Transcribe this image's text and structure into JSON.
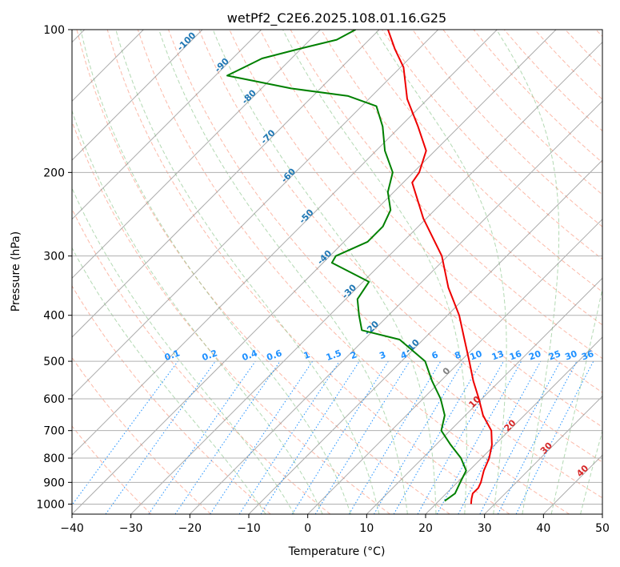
{
  "chart_data": {
    "type": "line",
    "title": "wetPf2_C2E6.2025.108.01.16.G25",
    "xlabel": "Temperature (°C)",
    "ylabel": "Pressure (hPa)",
    "xlim": [
      -40,
      50
    ],
    "ylim": [
      1050,
      100
    ],
    "y_scale": "log",
    "skew": true,
    "grid": true,
    "x_ticks": [
      "−40",
      "−30",
      "−20",
      "−10",
      "0",
      "10",
      "20",
      "30",
      "40",
      "50"
    ],
    "y_ticks": [
      "100",
      "200",
      "300",
      "400",
      "500",
      "600",
      "700",
      "800",
      "900",
      "1000"
    ],
    "series": [
      {
        "color": "#ee0000",
        "points": [
          {
            "p": 1000,
            "t": 26.0
          },
          {
            "p": 975,
            "t": 25.2
          },
          {
            "p": 950,
            "t": 24.5
          },
          {
            "p": 925,
            "t": 24.5
          },
          {
            "p": 900,
            "t": 24.0
          },
          {
            "p": 850,
            "t": 22.5
          },
          {
            "p": 800,
            "t": 21.3
          },
          {
            "p": 750,
            "t": 19.5
          },
          {
            "p": 700,
            "t": 17.0
          },
          {
            "p": 650,
            "t": 13.0
          },
          {
            "p": 600,
            "t": 9.5
          },
          {
            "p": 550,
            "t": 5.5
          },
          {
            "p": 500,
            "t": 1.5
          },
          {
            "p": 450,
            "t": -3.0
          },
          {
            "p": 400,
            "t": -8.0
          },
          {
            "p": 350,
            "t": -14.5
          },
          {
            "p": 300,
            "t": -21.0
          },
          {
            "p": 250,
            "t": -30.5
          },
          {
            "p": 210,
            "t": -38.5
          },
          {
            "p": 200,
            "t": -39.0
          },
          {
            "p": 180,
            "t": -41.5
          },
          {
            "p": 160,
            "t": -47.0
          },
          {
            "p": 140,
            "t": -53.5
          },
          {
            "p": 120,
            "t": -59.5
          },
          {
            "p": 110,
            "t": -64.0
          },
          {
            "p": 100,
            "t": -68.5
          }
        ]
      },
      {
        "color": "#008000",
        "points": [
          {
            "p": 985,
            "t": 21.0
          },
          {
            "p": 950,
            "t": 21.5
          },
          {
            "p": 900,
            "t": 20.5
          },
          {
            "p": 850,
            "t": 19.5
          },
          {
            "p": 800,
            "t": 16.5
          },
          {
            "p": 750,
            "t": 12.5
          },
          {
            "p": 700,
            "t": 8.5
          },
          {
            "p": 650,
            "t": 6.5
          },
          {
            "p": 600,
            "t": 3.0
          },
          {
            "p": 550,
            "t": -1.5
          },
          {
            "p": 500,
            "t": -6.0
          },
          {
            "p": 450,
            "t": -14.0
          },
          {
            "p": 430,
            "t": -22.0
          },
          {
            "p": 400,
            "t": -25.0
          },
          {
            "p": 370,
            "t": -28.0
          },
          {
            "p": 340,
            "t": -29.0
          },
          {
            "p": 310,
            "t": -38.5
          },
          {
            "p": 300,
            "t": -39.0
          },
          {
            "p": 280,
            "t": -36.0
          },
          {
            "p": 260,
            "t": -36.0
          },
          {
            "p": 240,
            "t": -37.5
          },
          {
            "p": 220,
            "t": -41.0
          },
          {
            "p": 200,
            "t": -43.5
          },
          {
            "p": 180,
            "t": -48.5
          },
          {
            "p": 160,
            "t": -53.0
          },
          {
            "p": 145,
            "t": -57.5
          },
          {
            "p": 138,
            "t": -64.0
          },
          {
            "p": 133,
            "t": -75.0
          },
          {
            "p": 128,
            "t": -83.0
          },
          {
            "p": 125,
            "t": -88.0
          },
          {
            "p": 120,
            "t": -86.5
          },
          {
            "p": 115,
            "t": -85.0
          },
          {
            "p": 110,
            "t": -80.5
          },
          {
            "p": 105,
            "t": -75.5
          },
          {
            "p": 100,
            "t": -74.0
          }
        ]
      }
    ],
    "isotherm_labels": [
      "-100",
      "-90",
      "-80",
      "-70",
      "-60",
      "-50",
      "-40",
      "-30",
      "-20",
      "-10"
    ],
    "isotherm_values": [
      -100,
      -90,
      -80,
      -70,
      -60,
      -50,
      -40,
      -30,
      -20,
      -10
    ],
    "mixing_ratio_labels": [
      "0.1",
      "0.2",
      "0.4",
      "0.6",
      "1",
      "1.5",
      "2",
      "3",
      "4",
      "6",
      "8",
      "10",
      "13",
      "16",
      "20",
      "25",
      "30",
      "36"
    ],
    "mixing_ratio_values": [
      0.1,
      0.2,
      0.4,
      0.6,
      1,
      1.5,
      2,
      3,
      4,
      6,
      8,
      10,
      13,
      16,
      20,
      25,
      30,
      36
    ],
    "high_isotherm_labels": [
      "0",
      "10",
      "20",
      "30",
      "40"
    ],
    "high_isotherm_values": [
      0,
      10,
      20,
      30,
      40
    ],
    "colors": {
      "temperature": "#ee0000",
      "dewpoint": "#008000",
      "isotherm_label": "#1f77b4",
      "mixing_ratio": "#1e90ff",
      "dry_adiabat": "#fa8060",
      "moist_adiabat": "#80c080",
      "warm_isotherm_label": "#d62728",
      "zero_isotherm_label": "#808080"
    }
  }
}
